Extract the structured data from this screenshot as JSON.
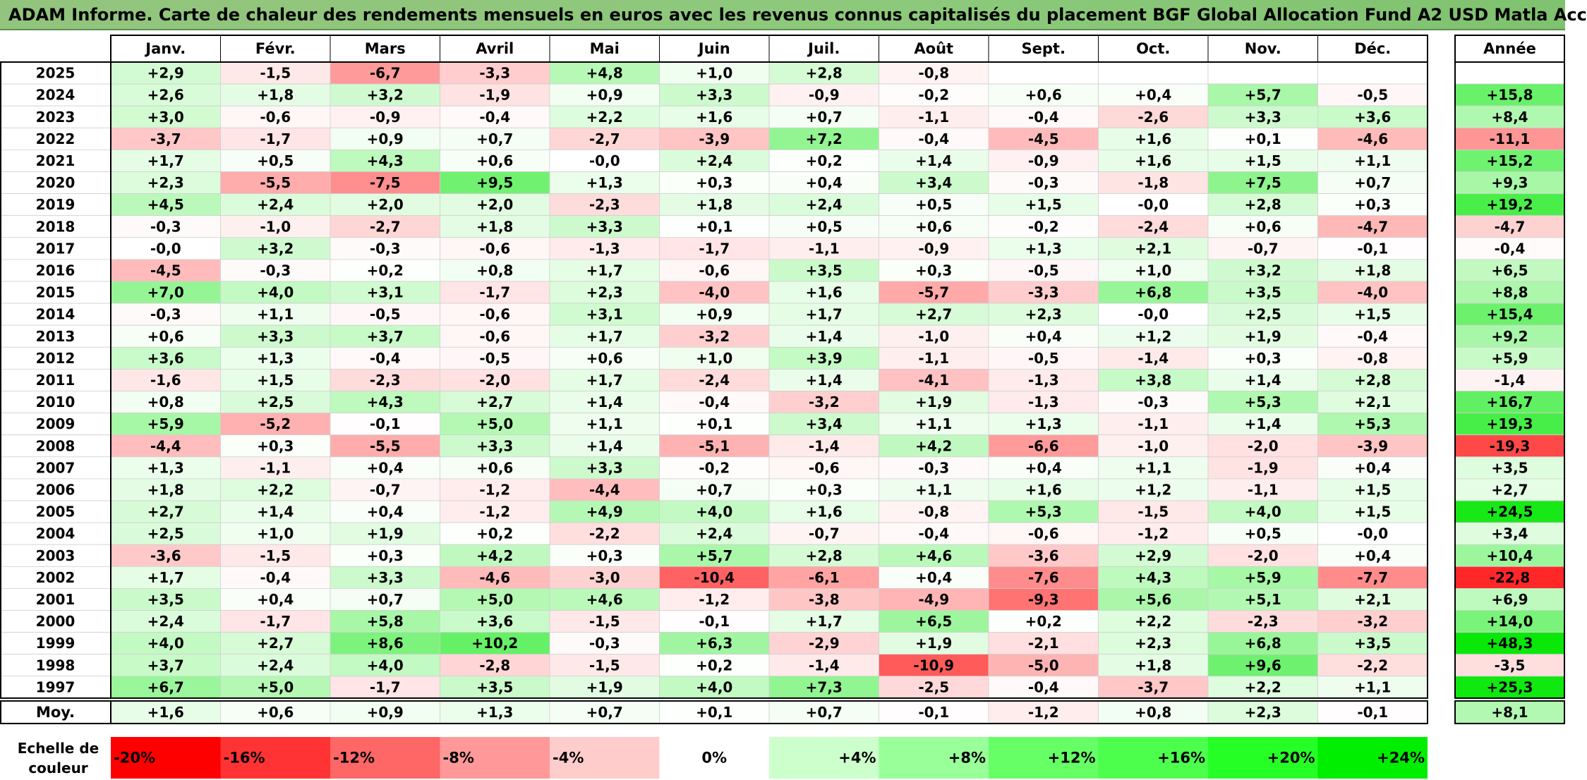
{
  "title": "ADAM Informe. Carte de chaleur des rendements mensuels en euros avec les revenus connus capitalisés du placement BGF Global Allocation Fund A2 USD Matla Acc",
  "chart_data": {
    "type": "heatmap",
    "months": [
      "Janv.",
      "Févr.",
      "Mars",
      "Avril",
      "Mai",
      "Juin",
      "Juil.",
      "Août",
      "Sept.",
      "Oct.",
      "Nov.",
      "Déc."
    ],
    "year_header": "Année",
    "rows": [
      {
        "year": "2025",
        "values": [
          "+2,9",
          "-1,5",
          "-6,7",
          "-3,3",
          "+4,8",
          "+1,0",
          "+2,8",
          "-0,8",
          "",
          "",
          "",
          ""
        ],
        "annual": ""
      },
      {
        "year": "2024",
        "values": [
          "+2,6",
          "+1,8",
          "+3,2",
          "-1,9",
          "+0,9",
          "+3,3",
          "-0,9",
          "-0,2",
          "+0,6",
          "+0,4",
          "+5,7",
          "-0,5"
        ],
        "annual": "+15,8"
      },
      {
        "year": "2023",
        "values": [
          "+3,0",
          "-0,6",
          "-0,9",
          "-0,4",
          "+2,2",
          "+1,6",
          "+0,7",
          "-1,1",
          "-0,4",
          "-2,6",
          "+3,3",
          "+3,6"
        ],
        "annual": "+8,4"
      },
      {
        "year": "2022",
        "values": [
          "-3,7",
          "-1,7",
          "+0,9",
          "+0,7",
          "-2,7",
          "-3,9",
          "+7,2",
          "-0,4",
          "-4,5",
          "+1,6",
          "+0,1",
          "-4,6"
        ],
        "annual": "-11,1"
      },
      {
        "year": "2021",
        "values": [
          "+1,7",
          "+0,5",
          "+4,3",
          "+0,6",
          "-0,0",
          "+2,4",
          "+0,2",
          "+1,4",
          "-0,9",
          "+1,6",
          "+1,5",
          "+1,1"
        ],
        "annual": "+15,2"
      },
      {
        "year": "2020",
        "values": [
          "+2,3",
          "-5,5",
          "-7,5",
          "+9,5",
          "+1,3",
          "+0,3",
          "+0,4",
          "+3,4",
          "-0,3",
          "-1,8",
          "+7,5",
          "+0,7"
        ],
        "annual": "+9,3"
      },
      {
        "year": "2019",
        "values": [
          "+4,5",
          "+2,4",
          "+2,0",
          "+2,0",
          "-2,3",
          "+1,8",
          "+2,4",
          "+0,5",
          "+1,5",
          "-0,0",
          "+2,8",
          "+0,3"
        ],
        "annual": "+19,2"
      },
      {
        "year": "2018",
        "values": [
          "-0,3",
          "-1,0",
          "-2,7",
          "+1,8",
          "+3,3",
          "+0,1",
          "+0,5",
          "+0,6",
          "-0,2",
          "-2,4",
          "+0,6",
          "-4,7"
        ],
        "annual": "-4,7"
      },
      {
        "year": "2017",
        "values": [
          "-0,0",
          "+3,2",
          "-0,3",
          "-0,6",
          "-1,3",
          "-1,7",
          "-1,1",
          "-0,9",
          "+1,3",
          "+2,1",
          "-0,7",
          "-0,1"
        ],
        "annual": "-0,4"
      },
      {
        "year": "2016",
        "values": [
          "-4,5",
          "-0,3",
          "+0,2",
          "+0,8",
          "+1,7",
          "-0,6",
          "+3,5",
          "+0,3",
          "-0,5",
          "+1,0",
          "+3,2",
          "+1,8"
        ],
        "annual": "+6,5"
      },
      {
        "year": "2015",
        "values": [
          "+7,0",
          "+4,0",
          "+3,1",
          "-1,7",
          "+2,3",
          "-4,0",
          "+1,6",
          "-5,7",
          "-3,3",
          "+6,8",
          "+3,5",
          "-4,0"
        ],
        "annual": "+8,8"
      },
      {
        "year": "2014",
        "values": [
          "-0,3",
          "+1,1",
          "-0,5",
          "-0,6",
          "+3,1",
          "+0,9",
          "+1,7",
          "+2,7",
          "+2,3",
          "-0,0",
          "+2,5",
          "+1,5"
        ],
        "annual": "+15,4"
      },
      {
        "year": "2013",
        "values": [
          "+0,6",
          "+3,3",
          "+3,7",
          "-0,6",
          "+1,7",
          "-3,2",
          "+1,4",
          "-1,0",
          "+0,4",
          "+1,2",
          "+1,9",
          "-0,4"
        ],
        "annual": "+9,2"
      },
      {
        "year": "2012",
        "values": [
          "+3,6",
          "+1,3",
          "-0,4",
          "-0,5",
          "+0,6",
          "+1,0",
          "+3,9",
          "-1,1",
          "-0,5",
          "-1,4",
          "+0,3",
          "-0,8"
        ],
        "annual": "+5,9"
      },
      {
        "year": "2011",
        "values": [
          "-1,6",
          "+1,5",
          "-2,3",
          "-2,0",
          "+1,7",
          "-2,4",
          "+1,4",
          "-4,1",
          "-1,3",
          "+3,8",
          "+1,4",
          "+2,8"
        ],
        "annual": "-1,4"
      },
      {
        "year": "2010",
        "values": [
          "+0,8",
          "+2,5",
          "+4,3",
          "+2,7",
          "+1,4",
          "-0,4",
          "-3,2",
          "+1,9",
          "-1,3",
          "-0,3",
          "+5,3",
          "+2,1"
        ],
        "annual": "+16,7"
      },
      {
        "year": "2009",
        "values": [
          "+5,9",
          "-5,2",
          "-0,1",
          "+5,0",
          "+1,1",
          "+0,1",
          "+3,4",
          "+1,1",
          "+1,3",
          "-1,1",
          "+1,4",
          "+5,3"
        ],
        "annual": "+19,3"
      },
      {
        "year": "2008",
        "values": [
          "-4,4",
          "+0,3",
          "-5,5",
          "+3,3",
          "+1,4",
          "-5,1",
          "-1,4",
          "+4,2",
          "-6,6",
          "-1,0",
          "-2,0",
          "-3,9"
        ],
        "annual": "-19,3"
      },
      {
        "year": "2007",
        "values": [
          "+1,3",
          "-1,1",
          "+0,4",
          "+0,6",
          "+3,3",
          "-0,2",
          "-0,6",
          "-0,3",
          "+0,4",
          "+1,1",
          "-1,9",
          "+0,4"
        ],
        "annual": "+3,5"
      },
      {
        "year": "2006",
        "values": [
          "+1,8",
          "+2,2",
          "-0,7",
          "-1,2",
          "-4,4",
          "+0,7",
          "+0,3",
          "+1,1",
          "+1,6",
          "+1,2",
          "-1,1",
          "+1,5"
        ],
        "annual": "+2,7"
      },
      {
        "year": "2005",
        "values": [
          "+2,7",
          "+1,4",
          "+0,4",
          "-1,2",
          "+4,9",
          "+4,0",
          "+1,6",
          "-0,8",
          "+5,3",
          "-1,5",
          "+4,0",
          "+1,5"
        ],
        "annual": "+24,5"
      },
      {
        "year": "2004",
        "values": [
          "+2,5",
          "+1,0",
          "+1,9",
          "+0,2",
          "-2,2",
          "+2,4",
          "-0,7",
          "-0,4",
          "-0,6",
          "-1,2",
          "+0,5",
          "-0,0"
        ],
        "annual": "+3,4"
      },
      {
        "year": "2003",
        "values": [
          "-3,6",
          "-1,5",
          "+0,3",
          "+4,2",
          "+0,3",
          "+5,7",
          "+2,8",
          "+4,6",
          "-3,6",
          "+2,9",
          "-2,0",
          "+0,4"
        ],
        "annual": "+10,4"
      },
      {
        "year": "2002",
        "values": [
          "+1,7",
          "-0,4",
          "+3,3",
          "-4,6",
          "-3,0",
          "-10,4",
          "-6,1",
          "+0,4",
          "-7,6",
          "+4,3",
          "+5,9",
          "-7,7"
        ],
        "annual": "-22,8"
      },
      {
        "year": "2001",
        "values": [
          "+3,5",
          "+0,4",
          "+0,7",
          "+5,0",
          "+4,6",
          "-1,2",
          "-3,8",
          "-4,9",
          "-9,3",
          "+5,6",
          "+5,1",
          "+2,1"
        ],
        "annual": "+6,9"
      },
      {
        "year": "2000",
        "values": [
          "+2,4",
          "-1,7",
          "+5,8",
          "+3,6",
          "-1,5",
          "-0,1",
          "+1,7",
          "+6,5",
          "+0,2",
          "+2,2",
          "-2,3",
          "-3,2"
        ],
        "annual": "+14,0"
      },
      {
        "year": "1999",
        "values": [
          "+4,0",
          "+2,7",
          "+8,6",
          "+10,2",
          "-0,3",
          "+6,3",
          "-2,9",
          "+1,9",
          "-2,1",
          "+2,3",
          "+6,8",
          "+3,5"
        ],
        "annual": "+48,3"
      },
      {
        "year": "1998",
        "values": [
          "+3,7",
          "+2,4",
          "+4,0",
          "-2,8",
          "-1,5",
          "+0,2",
          "-1,4",
          "-10,9",
          "-5,0",
          "+1,8",
          "+9,6",
          "-2,2"
        ],
        "annual": "-3,5"
      },
      {
        "year": "1997",
        "values": [
          "+6,7",
          "+5,0",
          "-1,7",
          "+3,5",
          "+1,9",
          "+4,0",
          "+7,3",
          "-2,5",
          "-0,4",
          "-3,7",
          "+2,2",
          "+1,1"
        ],
        "annual": "+25,3"
      }
    ],
    "average": {
      "label": "Moy.",
      "values": [
        "+1,6",
        "+0,6",
        "+0,9",
        "+1,3",
        "+0,7",
        "+0,1",
        "+0,7",
        "-0,1",
        "-1,2",
        "+0,8",
        "+2,3",
        "-0,1"
      ],
      "annual": "+8,1"
    },
    "scale": {
      "label_lines": [
        "Echelle de",
        "couleur"
      ],
      "stops": [
        {
          "value": -20,
          "label": "-20%",
          "color": "#ff0000"
        },
        {
          "value": -16,
          "label": "-16%",
          "color": "#ff3333"
        },
        {
          "value": -12,
          "label": "-12%",
          "color": "#ff6666"
        },
        {
          "value": -8,
          "label": "-8%",
          "color": "#ff9999"
        },
        {
          "value": -4,
          "label": "-4%",
          "color": "#ffcccc"
        },
        {
          "value": 0,
          "label": "0%",
          "color": "#ffffff"
        },
        {
          "value": 4,
          "label": "+4%",
          "color": "#ccffcc"
        },
        {
          "value": 8,
          "label": "+8%",
          "color": "#99ff99"
        },
        {
          "value": 12,
          "label": "+12%",
          "color": "#66ff66"
        },
        {
          "value": 16,
          "label": "+16%",
          "color": "#4dff4d"
        },
        {
          "value": 20,
          "label": "+20%",
          "color": "#26ff26"
        },
        {
          "value": 24,
          "label": "+24%",
          "color": "#00ee00"
        }
      ]
    }
  }
}
